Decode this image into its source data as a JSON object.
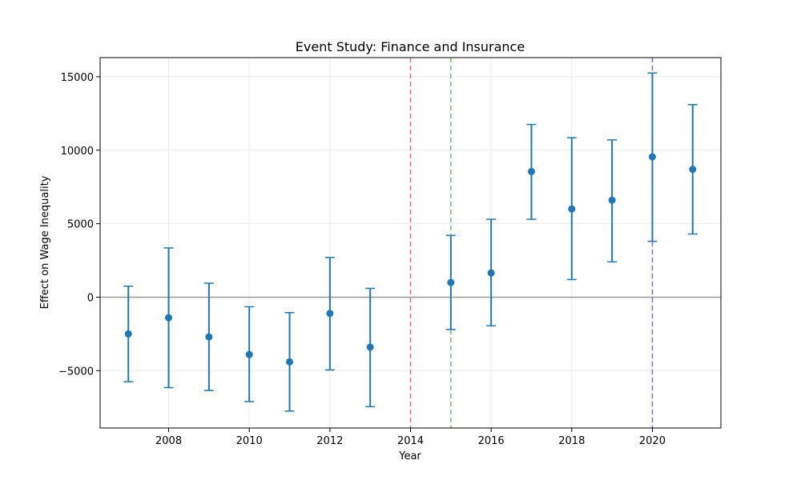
{
  "chart_data": {
    "type": "scatter",
    "title": "Event Study: Finance and Insurance",
    "xlabel": "Year",
    "ylabel": "Effect on Wage Inequality",
    "xlim": [
      2006.3,
      2021.7
    ],
    "ylim": [
      -8900,
      16300
    ],
    "xticks": [
      2008,
      2010,
      2012,
      2014,
      2016,
      2018,
      2020
    ],
    "xtick_labels": [
      "2008",
      "2010",
      "2012",
      "2014",
      "2016",
      "2018",
      "2020"
    ],
    "yticks": [
      -5000,
      0,
      5000,
      10000,
      15000
    ],
    "ytick_labels": [
      "−5000",
      "0",
      "5000",
      "10000",
      "15000"
    ],
    "grid": true,
    "points": [
      {
        "x": 2007,
        "y": -2500,
        "lower": -5750,
        "upper": 750
      },
      {
        "x": 2008,
        "y": -1400,
        "lower": -6150,
        "upper": 3350
      },
      {
        "x": 2009,
        "y": -2700,
        "lower": -6350,
        "upper": 950
      },
      {
        "x": 2010,
        "y": -3900,
        "lower": -7100,
        "upper": -650
      },
      {
        "x": 2011,
        "y": -4400,
        "lower": -7750,
        "upper": -1050
      },
      {
        "x": 2012,
        "y": -1100,
        "lower": -4950,
        "upper": 2700
      },
      {
        "x": 2013,
        "y": -3400,
        "lower": -7450,
        "upper": 600
      },
      {
        "x": 2015,
        "y": 1000,
        "lower": -2200,
        "upper": 4200
      },
      {
        "x": 2016,
        "y": 1650,
        "lower": -1950,
        "upper": 5300
      },
      {
        "x": 2017,
        "y": 8550,
        "lower": 5300,
        "upper": 11750
      },
      {
        "x": 2018,
        "y": 6000,
        "lower": 1200,
        "upper": 10850
      },
      {
        "x": 2019,
        "y": 6600,
        "lower": 2400,
        "upper": 10700
      },
      {
        "x": 2020,
        "y": 9550,
        "lower": 3800,
        "upper": 15250
      },
      {
        "x": 2021,
        "y": 8700,
        "lower": 4300,
        "upper": 13100
      }
    ],
    "reference_lines": [
      {
        "orientation": "horizontal",
        "value": 0,
        "color": "#999999",
        "style": "solid"
      },
      {
        "orientation": "vertical",
        "value": 2014,
        "color": "#ec6a6a",
        "style": "dashed"
      },
      {
        "orientation": "vertical",
        "value": 2015,
        "color": "#6cbd6c",
        "style": "dashed"
      },
      {
        "orientation": "vertical",
        "value": 2020,
        "color": "#6f6fec",
        "style": "dashed"
      }
    ],
    "colors": {
      "series": "#1f77b4",
      "grid": "#e6e6e6",
      "axes": "#000000"
    }
  }
}
